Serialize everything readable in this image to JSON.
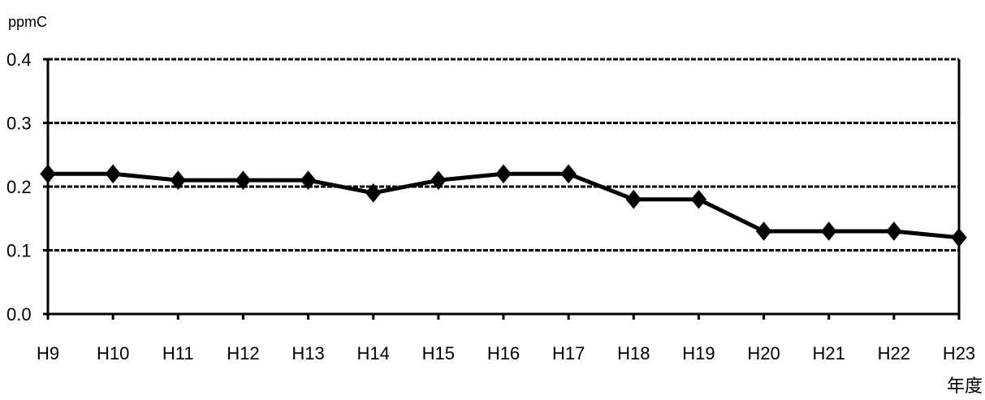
{
  "chart_data": {
    "type": "line",
    "title": "",
    "ylabel": "ppmC",
    "xlabel": "年度",
    "categories": [
      "H9",
      "H10",
      "H11",
      "H12",
      "H13",
      "H14",
      "H15",
      "H16",
      "H17",
      "H18",
      "H19",
      "H20",
      "H21",
      "H22",
      "H23"
    ],
    "series": [
      {
        "values": [
          0.22,
          0.22,
          0.21,
          0.21,
          0.21,
          0.19,
          0.21,
          0.22,
          0.22,
          0.18,
          0.18,
          0.13,
          0.13,
          0.13,
          0.12
        ]
      }
    ],
    "ylim": [
      0,
      0.4
    ],
    "y_ticks": [
      "0.0",
      "0.1",
      "0.2",
      "0.3",
      "0.4"
    ],
    "grid": true,
    "marker": "diamond",
    "line_color": "#000000"
  }
}
